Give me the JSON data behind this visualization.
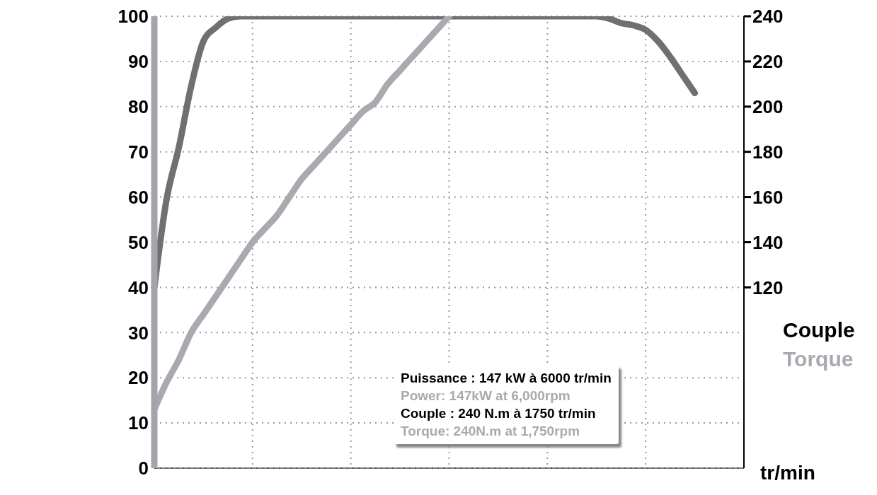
{
  "chart_data": {
    "type": "line",
    "categories": [
      null,
      null,
      null,
      null,
      null,
      null,
      null,
      null,
      null,
      null,
      null,
      null,
      null,
      null,
      null,
      null,
      null,
      null,
      null,
      null,
      null,
      null,
      null,
      null,
      null,
      null,
      null,
      null,
      null,
      null,
      null,
      null,
      null,
      null,
      null,
      null,
      null,
      null,
      null,
      null,
      null,
      null,
      null,
      null,
      null,
      null,
      null,
      null,
      null
    ],
    "series": [
      {
        "color": "#707070",
        "axis": "y2",
        "values": [
          120,
          159,
          182,
          209,
          229,
          235,
          239,
          240,
          240,
          240,
          240,
          240,
          240,
          240,
          240,
          240,
          240,
          240,
          240,
          240,
          240,
          240,
          240,
          240,
          240,
          240,
          240,
          240,
          240,
          240,
          240,
          240,
          240,
          240,
          240,
          240,
          240,
          239,
          237,
          236,
          234,
          229,
          222,
          214,
          206,
          null,
          null,
          null,
          null
        ]
      },
      {
        "color": "#a9a9af",
        "values": [
          13,
          19,
          24,
          30,
          34,
          38,
          42,
          46,
          50,
          53,
          56,
          60,
          64,
          67,
          70,
          73,
          76,
          79,
          81,
          85,
          88,
          91,
          94,
          97,
          100,
          null,
          null,
          null,
          null,
          null,
          null,
          null,
          null,
          null,
          null,
          null,
          null,
          null,
          null,
          null,
          null,
          null,
          null,
          null,
          null,
          null,
          null,
          null,
          null
        ]
      }
    ],
    "ylim": [
      0,
      100
    ],
    "yticks": [
      0,
      10,
      20,
      30,
      40,
      50,
      60,
      70,
      80,
      90,
      100
    ],
    "y2lim": [
      40,
      240
    ],
    "y2ticks": [
      120,
      140,
      160,
      180,
      200,
      220,
      240
    ],
    "y2label": "Couple",
    "xlabel": "tr/min",
    "annotations": [
      "Puissance : 147 kW à 6000 tr/min",
      "Power: 147kW at 6,000rpm",
      "Couple : 240 N.m à 1750 tr/min",
      "Torque: 240N.m at 1,750rpm",
      "Torque"
    ],
    "grid": true,
    "marker": "none",
    "line_style": "solid",
    "tick_labels": "y"
  }
}
